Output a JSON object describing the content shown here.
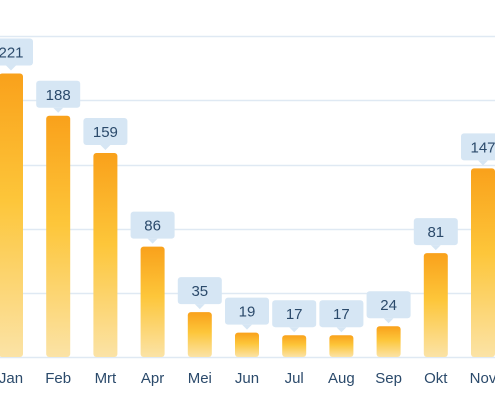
{
  "chart_data": {
    "type": "bar",
    "title": "",
    "xlabel": "",
    "ylabel": "",
    "categories": [
      "Jan",
      "Feb",
      "Mrt",
      "Apr",
      "Mei",
      "Jun",
      "Jul",
      "Aug",
      "Sep",
      "Okt",
      "Nov"
    ],
    "values": [
      221,
      188,
      159,
      86,
      35,
      19,
      17,
      17,
      24,
      81,
      147
    ],
    "ylim": [
      0,
      250
    ],
    "grid": true,
    "bar_gradient": {
      "top": "#f9a11b",
      "bottom": "#fbe3a6"
    },
    "label_style": "callout",
    "colors": {
      "grid": "#dfe9f3",
      "label_bg": "#d6e6f4",
      "text": "#2b4a6b"
    }
  }
}
